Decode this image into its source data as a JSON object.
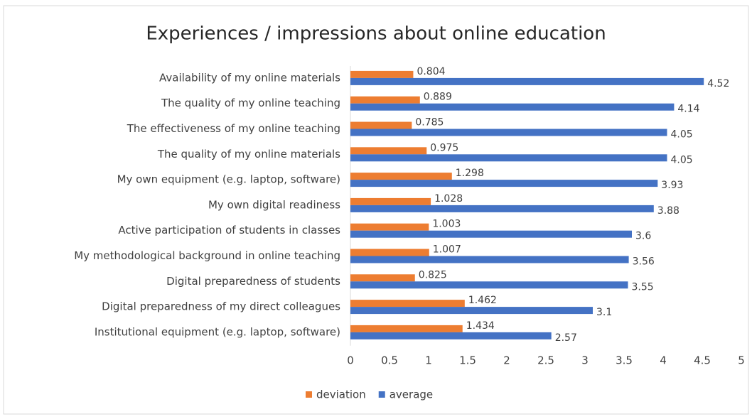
{
  "chart_data": {
    "type": "bar",
    "orientation": "horizontal",
    "title": "Experiences / impressions about online education",
    "categories": [
      "Availability of my online materials",
      "The quality of my online teaching",
      "The effectiveness of my online teaching",
      "The quality of my online materials",
      "My own equipment (e.g. laptop, software)",
      "My own digital readiness",
      "Active participation of students in classes",
      "My methodological background in online teaching",
      "Digital preparedness of students",
      "Digital preparedness of my direct colleagues",
      "Institutional equipment (e.g. laptop, software)"
    ],
    "series": [
      {
        "name": "deviation",
        "color": "#ed7d31",
        "values": [
          0.804,
          0.889,
          0.785,
          0.975,
          1.298,
          1.028,
          1.003,
          1.007,
          0.825,
          1.462,
          1.434
        ]
      },
      {
        "name": "average",
        "color": "#4472c4",
        "values": [
          4.52,
          4.14,
          4.05,
          4.05,
          3.93,
          3.88,
          3.6,
          3.56,
          3.55,
          3.1,
          2.57
        ]
      }
    ],
    "xlim": [
      0,
      5
    ],
    "xticks": [
      0,
      0.5,
      1,
      1.5,
      2,
      2.5,
      3,
      3.5,
      4,
      4.5,
      5
    ],
    "grid": false,
    "legend": "bottom"
  }
}
